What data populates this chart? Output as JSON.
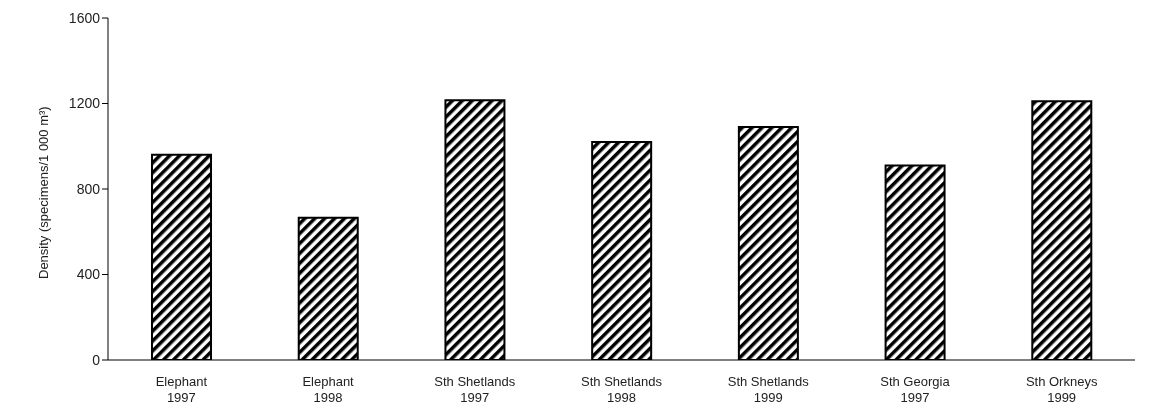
{
  "chart_data": {
    "type": "bar",
    "ylabel": "Density (specimens/1 000 m³)",
    "categories": [
      "Elephant 1997",
      "Elephant 1998",
      "Sth Shetlands 1997",
      "Sth Shetlands 1998",
      "Sth Shetlands 1999",
      "Sth Georgia 1997",
      "Sth Orkneys 1999"
    ],
    "values": [
      960,
      665,
      1215,
      1020,
      1090,
      910,
      1210
    ],
    "color": "#000000",
    "ylim": [
      0,
      1600
    ],
    "yticks": [
      0,
      400,
      800,
      1200,
      1600
    ],
    "grid": false
  }
}
